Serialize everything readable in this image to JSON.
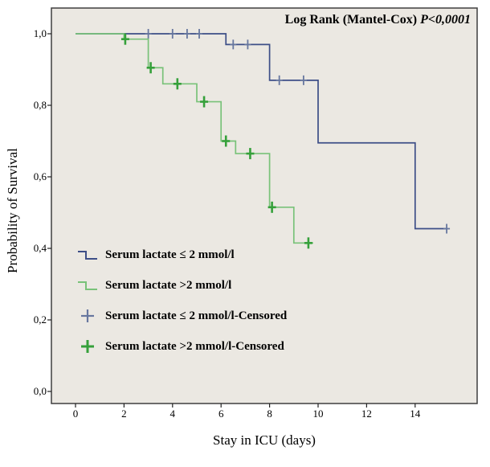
{
  "chart_data": {
    "type": "line",
    "subtype": "kaplan-meier-step",
    "title": "Log Rank (Mantel-Cox) P<0,0001",
    "annotation": {
      "prefix": "Log Rank (Mantel-Cox) ",
      "p_value": "P<0,0001"
    },
    "xlabel": "Stay in ICU (days)",
    "ylabel": "Probability of Survival",
    "xlim": [
      0,
      16.5
    ],
    "ylim": [
      0,
      1.05
    ],
    "grid": false,
    "plot_bg": "#ebe8e2",
    "border_color": "#3f3f3f",
    "x_ticks": [
      0,
      2,
      4,
      6,
      8,
      10,
      12,
      14
    ],
    "y_ticks": [
      {
        "label": "0,0",
        "value": 0.0
      },
      {
        "label": "0,2",
        "value": 0.2
      },
      {
        "label": "0,4",
        "value": 0.4
      },
      {
        "label": "0,6",
        "value": 0.6
      },
      {
        "label": "0,8",
        "value": 0.8
      },
      {
        "label": "1,0",
        "value": 1.0
      }
    ],
    "series": [
      {
        "name": "Serum lactate ≤ 2 mmol/l",
        "color": "#3d4e87",
        "censor_color": "#67779f",
        "line_width": 1.7,
        "censor_stroke": 1.8,
        "censor_half_v": 6,
        "censor_half_h": 4,
        "steps": [
          [
            0,
            1.0
          ],
          [
            6.2,
            1.0
          ],
          [
            6.2,
            0.97
          ],
          [
            8,
            0.97
          ],
          [
            8,
            0.87
          ],
          [
            10,
            0.87
          ],
          [
            10,
            0.695
          ],
          [
            14,
            0.695
          ],
          [
            14,
            0.455
          ],
          [
            15.3,
            0.455
          ]
        ],
        "censored": [
          [
            3,
            1.0
          ],
          [
            4,
            1.0
          ],
          [
            4.6,
            1.0
          ],
          [
            5.1,
            1.0
          ],
          [
            6.5,
            0.97
          ],
          [
            7.1,
            0.97
          ],
          [
            8.4,
            0.87
          ],
          [
            9.4,
            0.87
          ],
          [
            15.3,
            0.455
          ]
        ]
      },
      {
        "name": "Serum lactate >2 mmol/l",
        "color": "#79c279",
        "censor_color": "#35a03a",
        "line_width": 1.7,
        "censor_stroke": 2.6,
        "censor_half_v": 7,
        "censor_half_h": 5,
        "steps": [
          [
            0,
            1.0
          ],
          [
            2,
            1.0
          ],
          [
            2,
            0.985
          ],
          [
            3,
            0.985
          ],
          [
            3,
            0.905
          ],
          [
            3.6,
            0.905
          ],
          [
            3.6,
            0.86
          ],
          [
            5,
            0.86
          ],
          [
            5,
            0.81
          ],
          [
            6,
            0.81
          ],
          [
            6,
            0.7
          ],
          [
            6.6,
            0.7
          ],
          [
            6.6,
            0.665
          ],
          [
            8,
            0.665
          ],
          [
            8,
            0.515
          ],
          [
            9,
            0.515
          ],
          [
            9,
            0.415
          ],
          [
            9.8,
            0.415
          ]
        ],
        "censored": [
          [
            2.05,
            0.985
          ],
          [
            3.1,
            0.905
          ],
          [
            4.2,
            0.86
          ],
          [
            5.3,
            0.81
          ],
          [
            6.2,
            0.7
          ],
          [
            7.2,
            0.665
          ],
          [
            8.1,
            0.515
          ],
          [
            9.6,
            0.415
          ]
        ]
      }
    ],
    "legend": [
      {
        "label": "Serum lactate ≤ 2 mmol/l",
        "glyph": "step",
        "color": "#3d4e87",
        "stroke": 2
      },
      {
        "label": "Serum lactate >2 mmol/l",
        "glyph": "step",
        "color": "#79c279",
        "stroke": 2
      },
      {
        "label": "Serum lactate ≤ 2 mmol/l-Censored",
        "glyph": "plus",
        "color": "#67779f",
        "stroke": 2.2
      },
      {
        "label": "Serum lactate >2 mmol/l-Censored",
        "glyph": "plus",
        "color": "#35a03a",
        "stroke": 3
      }
    ],
    "legend_position": "inside-lower-left"
  }
}
